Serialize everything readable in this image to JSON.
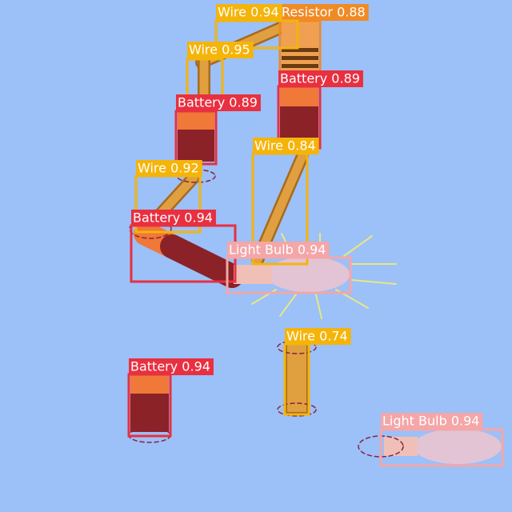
{
  "detections": [
    {
      "label": "Resistor 0.88"
    },
    {
      "label": "Wire 0.94"
    },
    {
      "label": "Wire 0.95"
    },
    {
      "label": "Battery 0.89"
    },
    {
      "label": "Battery 0.89"
    },
    {
      "label": "Wire 0.84"
    },
    {
      "label": "Wire 0.92"
    },
    {
      "label": "Battery 0.94"
    },
    {
      "label": "Light Bulb 0.94"
    },
    {
      "label": "Wire 0.74"
    },
    {
      "label": "Battery 0.94"
    },
    {
      "label": "Light Bulb 0.94"
    }
  ]
}
